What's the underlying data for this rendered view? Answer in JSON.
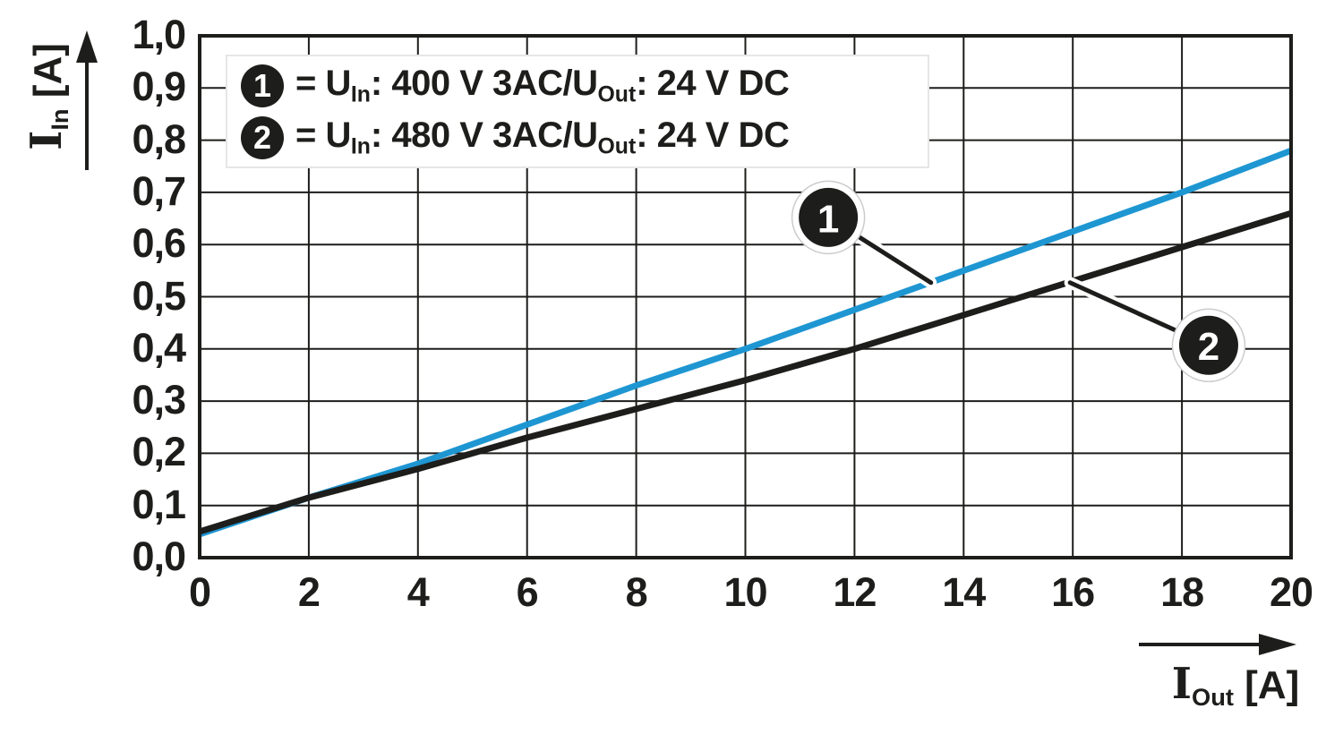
{
  "colors": {
    "line_black": "#1d1d1b",
    "grid": "#1d1d1b",
    "accent_blue": "#1e96d2",
    "background": "#ffffff",
    "legend_border": "#e6e6e6",
    "callout_ring": "#cccccc"
  },
  "chart_data": {
    "type": "line",
    "title": "",
    "grid": true,
    "legend_position": "top-left",
    "x_axis": {
      "label_parts": [
        {
          "t": "I",
          "serif": true
        },
        {
          "t": "Out",
          "sub": true
        },
        {
          "t": " [A]"
        }
      ],
      "ticks": [
        "0",
        "2",
        "4",
        "6",
        "8",
        "10",
        "12",
        "14",
        "16",
        "18",
        "20"
      ],
      "tick_values": [
        0,
        2,
        4,
        6,
        8,
        10,
        12,
        14,
        16,
        18,
        20
      ],
      "range": [
        0,
        20
      ]
    },
    "y_axis": {
      "label_parts": [
        {
          "t": "I",
          "serif": true
        },
        {
          "t": "In",
          "sub": true
        },
        {
          "t": " [A]"
        }
      ],
      "ticks": [
        "0,0",
        "0,1",
        "0,2",
        "0,3",
        "0,4",
        "0,5",
        "0,6",
        "0,7",
        "0,8",
        "0,9",
        "1,0"
      ],
      "tick_values": [
        0,
        0.1,
        0.2,
        0.3,
        0.4,
        0.5,
        0.6,
        0.7,
        0.8,
        0.9,
        1.0
      ],
      "range": [
        0,
        1
      ]
    },
    "series": [
      {
        "id": "1",
        "legend_parts": [
          {
            "t": "= U"
          },
          {
            "t": "In",
            "sub": true
          },
          {
            "t": ": 400 V 3AC/U"
          },
          {
            "t": "Out",
            "sub": true
          },
          {
            "t": ": 24 V DC"
          }
        ],
        "color": "#1e96d2",
        "x": [
          0,
          2,
          4,
          6,
          8,
          10,
          12,
          14,
          16,
          18,
          20
        ],
        "values": [
          0.045,
          0.115,
          0.18,
          0.255,
          0.33,
          0.4,
          0.475,
          0.55,
          0.625,
          0.7,
          0.78
        ]
      },
      {
        "id": "2",
        "legend_parts": [
          {
            "t": "= U"
          },
          {
            "t": "In",
            "sub": true
          },
          {
            "t": ": 480 V 3AC/U"
          },
          {
            "t": "Out",
            "sub": true
          },
          {
            "t": ": 24 V DC"
          }
        ],
        "color": "#1d1d1b",
        "x": [
          0,
          2,
          4,
          6,
          8,
          10,
          12,
          14,
          16,
          18,
          20
        ],
        "values": [
          0.05,
          0.115,
          0.17,
          0.23,
          0.285,
          0.34,
          0.4,
          0.465,
          0.53,
          0.595,
          0.66
        ]
      }
    ],
    "callouts": [
      {
        "number": "1",
        "target_x": 13.4,
        "target_y": 0.527,
        "circle_x": 11.52,
        "circle_y": 0.652
      },
      {
        "number": "2",
        "target_x": 15.95,
        "target_y": 0.527,
        "circle_x": 18.49,
        "circle_y": 0.407
      }
    ]
  }
}
